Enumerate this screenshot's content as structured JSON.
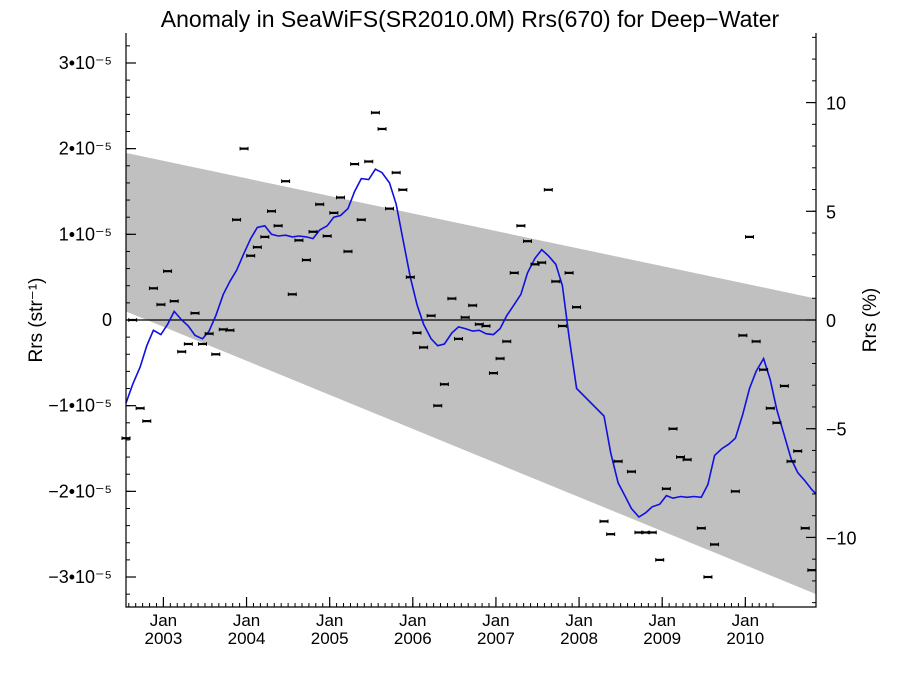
{
  "chart_data": {
    "type": "line",
    "title": "Anomaly in SeaWiFS(SR2010.0M) Rrs(670) for Deep−Water",
    "ylabel_left": "Rrs (str⁻¹)",
    "ylabel_right": "Rrs (%)",
    "xlabel": "",
    "xlim": [
      2002.55,
      2010.85
    ],
    "ylim_left": [
      -3.35e-05,
      3.35e-05
    ],
    "ylim_right": [
      -13.2,
      13.2
    ],
    "left_ticks": [
      {
        "value": 3e-05,
        "label": "3•10⁻⁵"
      },
      {
        "value": 2e-05,
        "label": "2•10⁻⁵"
      },
      {
        "value": 1e-05,
        "label": "1•10⁻⁵"
      },
      {
        "value": 0,
        "label": "0"
      },
      {
        "value": -1e-05,
        "label": "−1•10⁻⁵"
      },
      {
        "value": -2e-05,
        "label": "−2•10⁻⁵"
      },
      {
        "value": -3e-05,
        "label": "−3•10⁻⁵"
      }
    ],
    "right_ticks": [
      {
        "value": 10,
        "label": "10"
      },
      {
        "value": 5,
        "label": "5"
      },
      {
        "value": 0,
        "label": "0"
      },
      {
        "value": -5,
        "label": "−5"
      },
      {
        "value": -10,
        "label": "−10"
      }
    ],
    "x_ticks": [
      {
        "value": 2003,
        "month": "Jan",
        "year": "2003"
      },
      {
        "value": 2004,
        "month": "Jan",
        "year": "2004"
      },
      {
        "value": 2005,
        "month": "Jan",
        "year": "2005"
      },
      {
        "value": 2006,
        "month": "Jan",
        "year": "2006"
      },
      {
        "value": 2007,
        "month": "Jan",
        "year": "2007"
      },
      {
        "value": 2008,
        "month": "Jan",
        "year": "2008"
      },
      {
        "value": 2009,
        "month": "Jan",
        "year": "2009"
      },
      {
        "value": 2010,
        "month": "Jan",
        "year": "2010"
      }
    ],
    "band": {
      "color": "#c0c0c0",
      "upper": [
        [
          2002.55,
          1.95e-05
        ],
        [
          2010.85,
          2.5e-06
        ]
      ],
      "lower": [
        [
          2002.55,
          1e-06
        ],
        [
          2010.85,
          -3.2e-05
        ]
      ]
    },
    "zero_line_color": "#000000",
    "series": [
      {
        "type": "line",
        "color": "#1010e0",
        "points": [
          [
            2002.55,
            -9.7e-06
          ],
          [
            2002.63,
            -7.5e-06
          ],
          [
            2002.72,
            -5.5e-06
          ],
          [
            2002.8,
            -3e-06
          ],
          [
            2002.88,
            -1.2e-06
          ],
          [
            2002.97,
            -1.7e-06
          ],
          [
            2003.05,
            -5e-07
          ],
          [
            2003.13,
            1e-06
          ],
          [
            2003.22,
            0.0
          ],
          [
            2003.3,
            -7e-07
          ],
          [
            2003.38,
            -1.8e-06
          ],
          [
            2003.47,
            -2.2e-06
          ],
          [
            2003.55,
            -1.3e-06
          ],
          [
            2003.63,
            5e-07
          ],
          [
            2003.72,
            3e-06
          ],
          [
            2003.8,
            4.5e-06
          ],
          [
            2003.88,
            5.8e-06
          ],
          [
            2003.97,
            7.8e-06
          ],
          [
            2004.05,
            9.5e-06
          ],
          [
            2004.13,
            1.08e-05
          ],
          [
            2004.22,
            1.1e-05
          ],
          [
            2004.3,
            1e-05
          ],
          [
            2004.38,
            9.8e-06
          ],
          [
            2004.47,
            9.9e-06
          ],
          [
            2004.55,
            9.7e-06
          ],
          [
            2004.63,
            9.8e-06
          ],
          [
            2004.72,
            9.7e-06
          ],
          [
            2004.8,
            9.5e-06
          ],
          [
            2004.88,
            1.05e-05
          ],
          [
            2004.97,
            1.1e-05
          ],
          [
            2005.05,
            1.2e-05
          ],
          [
            2005.13,
            1.22e-05
          ],
          [
            2005.22,
            1.3e-05
          ],
          [
            2005.3,
            1.5e-05
          ],
          [
            2005.38,
            1.65e-05
          ],
          [
            2005.47,
            1.64e-05
          ],
          [
            2005.55,
            1.76e-05
          ],
          [
            2005.63,
            1.72e-05
          ],
          [
            2005.72,
            1.6e-05
          ],
          [
            2005.8,
            1.35e-05
          ],
          [
            2005.88,
            9.5e-06
          ],
          [
            2005.97,
            5e-06
          ],
          [
            2006.05,
            1.8e-06
          ],
          [
            2006.13,
            -5e-07
          ],
          [
            2006.22,
            -2.2e-06
          ],
          [
            2006.3,
            -3e-06
          ],
          [
            2006.38,
            -2.8e-06
          ],
          [
            2006.47,
            -1.5e-06
          ],
          [
            2006.55,
            -8e-07
          ],
          [
            2006.63,
            -1e-06
          ],
          [
            2006.72,
            -1.3e-06
          ],
          [
            2006.8,
            -1.2e-06
          ],
          [
            2006.88,
            -1.6e-06
          ],
          [
            2006.97,
            -1.7e-06
          ],
          [
            2007.05,
            -1e-06
          ],
          [
            2007.13,
            5e-07
          ],
          [
            2007.22,
            1.8e-06
          ],
          [
            2007.3,
            3e-06
          ],
          [
            2007.38,
            5.5e-06
          ],
          [
            2007.47,
            7.2e-06
          ],
          [
            2007.55,
            8.2e-06
          ],
          [
            2007.63,
            7.5e-06
          ],
          [
            2007.72,
            6.5e-06
          ],
          [
            2007.8,
            4e-06
          ],
          [
            2007.88,
            -2e-06
          ],
          [
            2007.97,
            -8e-06
          ],
          [
            2008.3,
            -1.12e-05
          ],
          [
            2008.38,
            -1.55e-05
          ],
          [
            2008.47,
            -1.9e-05
          ],
          [
            2008.55,
            -2.05e-05
          ],
          [
            2008.63,
            -2.2e-05
          ],
          [
            2008.72,
            -2.3e-05
          ],
          [
            2008.8,
            -2.25e-05
          ],
          [
            2008.88,
            -2.18e-05
          ],
          [
            2008.97,
            -2.15e-05
          ],
          [
            2009.05,
            -2.05e-05
          ],
          [
            2009.13,
            -2.08e-05
          ],
          [
            2009.22,
            -2.06e-05
          ],
          [
            2009.3,
            -2.07e-05
          ],
          [
            2009.38,
            -2.06e-05
          ],
          [
            2009.47,
            -2.07e-05
          ],
          [
            2009.55,
            -1.92e-05
          ],
          [
            2009.63,
            -1.58e-05
          ],
          [
            2009.72,
            -1.5e-05
          ],
          [
            2009.8,
            -1.45e-05
          ],
          [
            2009.88,
            -1.38e-05
          ],
          [
            2009.97,
            -1.1e-05
          ],
          [
            2010.05,
            -8e-06
          ],
          [
            2010.13,
            -6e-06
          ],
          [
            2010.22,
            -4.5e-06
          ],
          [
            2010.3,
            -7e-06
          ],
          [
            2010.38,
            -1.05e-05
          ],
          [
            2010.47,
            -1.35e-05
          ],
          [
            2010.55,
            -1.62e-05
          ],
          [
            2010.63,
            -1.78e-05
          ],
          [
            2010.72,
            -1.88e-05
          ],
          [
            2010.8,
            -1.98e-05
          ],
          [
            2010.85,
            -2.03e-05
          ]
        ]
      },
      {
        "type": "scatter",
        "color": "#000000",
        "marker": "short-bar",
        "points": [
          [
            2002.55,
            -1.38e-05
          ],
          [
            2002.63,
            0.0
          ],
          [
            2002.72,
            -1.03e-05
          ],
          [
            2002.8,
            -1.18e-05
          ],
          [
            2002.88,
            3.7e-06
          ],
          [
            2002.97,
            1.8e-06
          ],
          [
            2003.05,
            5.7e-06
          ],
          [
            2003.13,
            2.2e-06
          ],
          [
            2003.22,
            -3.7e-06
          ],
          [
            2003.3,
            -2.8e-06
          ],
          [
            2003.38,
            8e-07
          ],
          [
            2003.47,
            -2.8e-06
          ],
          [
            2003.55,
            -1.6e-06
          ],
          [
            2003.63,
            -4e-06
          ],
          [
            2003.72,
            -1.1e-06
          ],
          [
            2003.8,
            -1.2e-06
          ],
          [
            2003.88,
            1.17e-05
          ],
          [
            2003.97,
            2e-05
          ],
          [
            2004.05,
            7.5e-06
          ],
          [
            2004.13,
            8.5e-06
          ],
          [
            2004.22,
            9.7e-06
          ],
          [
            2004.3,
            1.27e-05
          ],
          [
            2004.38,
            1.1e-05
          ],
          [
            2004.47,
            1.62e-05
          ],
          [
            2004.55,
            3e-06
          ],
          [
            2004.63,
            9.3e-06
          ],
          [
            2004.72,
            7e-06
          ],
          [
            2004.8,
            1.03e-05
          ],
          [
            2004.88,
            1.35e-05
          ],
          [
            2004.97,
            9.8e-06
          ],
          [
            2005.05,
            1.25e-05
          ],
          [
            2005.13,
            1.43e-05
          ],
          [
            2005.22,
            8e-06
          ],
          [
            2005.3,
            1.82e-05
          ],
          [
            2005.38,
            1.17e-05
          ],
          [
            2005.47,
            1.85e-05
          ],
          [
            2005.55,
            2.42e-05
          ],
          [
            2005.63,
            2.23e-05
          ],
          [
            2005.72,
            1.3e-05
          ],
          [
            2005.8,
            1.72e-05
          ],
          [
            2005.88,
            1.52e-05
          ],
          [
            2005.97,
            5e-06
          ],
          [
            2006.05,
            -1.5e-06
          ],
          [
            2006.13,
            -3.2e-06
          ],
          [
            2006.22,
            5e-07
          ],
          [
            2006.3,
            -1e-05
          ],
          [
            2006.38,
            -7.5e-06
          ],
          [
            2006.47,
            2.5e-06
          ],
          [
            2006.55,
            -2.2e-06
          ],
          [
            2006.63,
            3e-07
          ],
          [
            2006.72,
            1.7e-06
          ],
          [
            2006.8,
            -5e-07
          ],
          [
            2006.88,
            -7e-07
          ],
          [
            2006.97,
            -6.2e-06
          ],
          [
            2007.05,
            -4.5e-06
          ],
          [
            2007.13,
            -2.5e-06
          ],
          [
            2007.22,
            5.5e-06
          ],
          [
            2007.3,
            1.1e-05
          ],
          [
            2007.38,
            9.2e-06
          ],
          [
            2007.47,
            6.5e-06
          ],
          [
            2007.55,
            6.7e-06
          ],
          [
            2007.63,
            1.52e-05
          ],
          [
            2007.72,
            4.5e-06
          ],
          [
            2007.8,
            -7e-07
          ],
          [
            2007.88,
            5.5e-06
          ],
          [
            2007.97,
            1.5e-06
          ],
          [
            2008.3,
            -2.35e-05
          ],
          [
            2008.38,
            -2.5e-05
          ],
          [
            2008.47,
            -1.65e-05
          ],
          [
            2008.63,
            -1.77e-05
          ],
          [
            2008.72,
            -2.48e-05
          ],
          [
            2008.8,
            -2.48e-05
          ],
          [
            2008.88,
            -2.48e-05
          ],
          [
            2008.97,
            -2.8e-05
          ],
          [
            2009.05,
            -1.97e-05
          ],
          [
            2009.13,
            -1.27e-05
          ],
          [
            2009.22,
            -1.6e-05
          ],
          [
            2009.3,
            -1.63e-05
          ],
          [
            2009.47,
            -2.43e-05
          ],
          [
            2009.55,
            -3e-05
          ],
          [
            2009.63,
            -2.62e-05
          ],
          [
            2009.88,
            -2e-05
          ],
          [
            2009.97,
            -1.8e-06
          ],
          [
            2010.05,
            9.7e-06
          ],
          [
            2010.13,
            -2.5e-06
          ],
          [
            2010.22,
            -5.8e-06
          ],
          [
            2010.3,
            -1.03e-05
          ],
          [
            2010.38,
            -1.2e-05
          ],
          [
            2010.47,
            -7.7e-06
          ],
          [
            2010.55,
            -1.65e-05
          ],
          [
            2010.63,
            -1.53e-05
          ],
          [
            2010.72,
            -2.43e-05
          ],
          [
            2010.8,
            -2.92e-05
          ]
        ]
      }
    ],
    "grid": false,
    "legend": "none"
  }
}
